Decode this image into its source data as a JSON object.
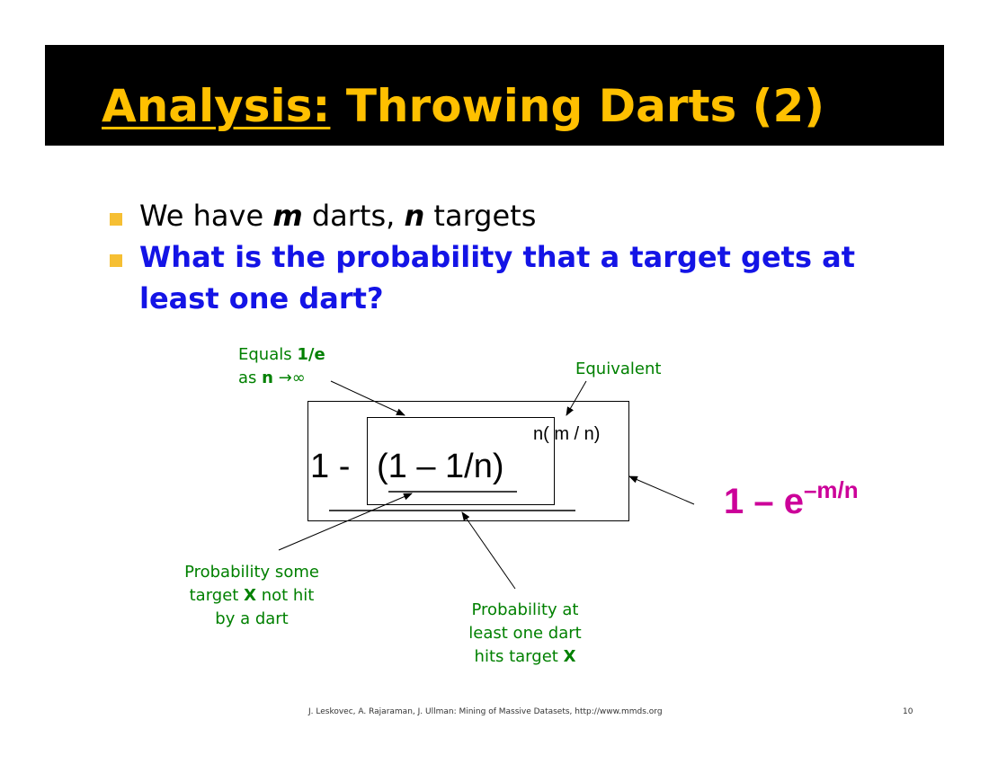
{
  "title": {
    "prefix": "Analysis:",
    "rest": " Throwing Darts (2)"
  },
  "bullets": [
    {
      "pre": "We have ",
      "m": "m",
      "mid": " darts, ",
      "n": "n",
      "post": " targets"
    },
    {
      "line1": "What is the probability that a target gets at",
      "line2": "least one dart?"
    }
  ],
  "diagram": {
    "equals_note": {
      "l1a": "Equals ",
      "l1b": "1/e",
      "l2a": "as ",
      "l2b": "n",
      "l2c": " →∞"
    },
    "equivalent_note": "Equivalent",
    "formula_one_minus": "1 -",
    "formula_base": "(1 – 1/n)",
    "formula_exponent": "n( m / n)",
    "result_base": "1 – e",
    "result_exp": "–m/n",
    "note_not_hit": {
      "l1": "Probability some",
      "l2a": "target ",
      "l2b": "X",
      "l2c": " not hit",
      "l3": "by a dart"
    },
    "note_hit": {
      "l1": "Probability at",
      "l2": "least one dart",
      "l3a": "hits target ",
      "l3b": "X"
    }
  },
  "footer": {
    "citation": "J. Leskovec, A. Rajaraman, J. Ullman: Mining of Massive Datasets, http://www.mmds.org",
    "page": "10"
  },
  "colors": {
    "title": "#FFC000",
    "question": "#1414E6",
    "notes": "#008000",
    "result": "#CC0099",
    "bullet": "#F6BF33"
  }
}
